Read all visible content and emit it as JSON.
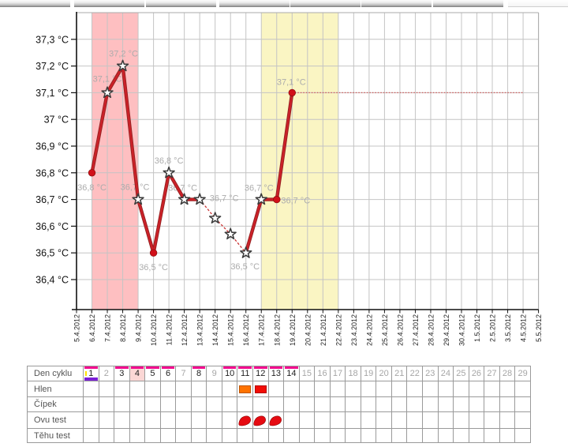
{
  "top_strip": {
    "segment_count": 8
  },
  "chart_data": {
    "type": "line",
    "title": "",
    "xlabel": "",
    "ylabel": "",
    "grid": true,
    "ylim": [
      36.29,
      37.4
    ],
    "x_dates": [
      "5.4.2012",
      "6.4.2012",
      "7.4.2012",
      "8.4.2012",
      "9.4.2012",
      "10.4.2012",
      "11.4.2012",
      "12.4.2012",
      "13.4.2012",
      "14.4.2012",
      "15.4.2012",
      "16.4.2012",
      "17.4.2012",
      "18.4.2012",
      "19.4.2012",
      "20.4.2012",
      "21.4.2012",
      "22.4.2012",
      "23.4.2012",
      "24.4.2012",
      "25.4.2012",
      "26.4.2012",
      "27.4.2012",
      "28.4.2012",
      "29.4.2012",
      "30.4.2012",
      "1.5.2012",
      "2.5.2012",
      "3.5.2012",
      "4.5.2012",
      "5.5.2012"
    ],
    "y_ticks": [
      {
        "temp": 37.3,
        "label": "37,3 °C"
      },
      {
        "temp": 37.2,
        "label": "37,2 °C"
      },
      {
        "temp": 37.1,
        "label": "37,1 °C"
      },
      {
        "temp": 37.0,
        "label": "37 °C"
      },
      {
        "temp": 36.9,
        "label": "36,9 °C"
      },
      {
        "temp": 36.8,
        "label": "36,8 °C"
      },
      {
        "temp": 36.7,
        "label": "36,7 °C"
      },
      {
        "temp": 36.6,
        "label": "36,6 °C"
      },
      {
        "temp": 36.5,
        "label": "36,5 °C"
      },
      {
        "temp": 36.4,
        "label": "36,4 °C"
      }
    ],
    "bands": [
      {
        "name": "menstruation",
        "from": "6.4.2012",
        "to": "9.4.2012",
        "color": "#febfc1"
      },
      {
        "name": "fertile-window",
        "from": "17.4.2012",
        "to": "22.4.2012",
        "color": "#faf5c3"
      }
    ],
    "series": [
      {
        "name": "basal-temperature",
        "color": "#cb2128",
        "points": [
          {
            "date": "6.4.2012",
            "temp": 36.8,
            "marker": "dot",
            "link": null,
            "label": "36,8 °C",
            "label_dx": 0,
            "label_dy": 18
          },
          {
            "date": "7.4.2012",
            "temp": 37.1,
            "marker": "star",
            "link": "solid",
            "label": "37,1 °C",
            "label_dx": 0,
            "label_dy": -18
          },
          {
            "date": "8.4.2012",
            "temp": 37.2,
            "marker": "star",
            "link": "solid",
            "label": "37,2 °C",
            "label_dx": 1,
            "label_dy": -16
          },
          {
            "date": "9.4.2012",
            "temp": 36.7,
            "marker": "star",
            "link": "solid",
            "label": "36,7 °C",
            "label_dx": -4,
            "label_dy": -16
          },
          {
            "date": "10.4.2012",
            "temp": 36.5,
            "marker": "dot",
            "link": "solid",
            "label": "36,5 °C",
            "label_dx": 0,
            "label_dy": 18
          },
          {
            "date": "11.4.2012",
            "temp": 36.8,
            "marker": "star",
            "link": "solid",
            "label": "36,8 °C",
            "label_dx": 0,
            "label_dy": -16
          },
          {
            "date": "12.4.2012",
            "temp": 36.7,
            "marker": "star",
            "link": "solid",
            "label": "36,7 °C",
            "label_dx": -2,
            "label_dy": -15
          },
          {
            "date": "13.4.2012",
            "temp": 36.7,
            "marker": "star",
            "link": "solid",
            "label": "36,7 °C",
            "label_dx": 31,
            "label_dy": -2
          },
          {
            "date": "14.4.2012",
            "temp": 36.63,
            "marker": "star",
            "link": "dashed",
            "label": null,
            "label_dx": 0,
            "label_dy": 0
          },
          {
            "date": "15.4.2012",
            "temp": 36.57,
            "marker": "star",
            "link": "dashed",
            "label": null,
            "label_dx": 0,
            "label_dy": 0
          },
          {
            "date": "16.4.2012",
            "temp": 36.5,
            "marker": "star",
            "link": "dashed",
            "label": "36,5 °C",
            "label_dx": -1,
            "label_dy": 17
          },
          {
            "date": "17.4.2012",
            "temp": 36.7,
            "marker": "star",
            "link": "solid",
            "label": "36,7 °C",
            "label_dx": -3,
            "label_dy": -15
          },
          {
            "date": "18.4.2012",
            "temp": 36.7,
            "marker": "dot",
            "link": "solid",
            "label": "36,7 °C",
            "label_dx": 24,
            "label_dy": 1
          },
          {
            "date": "19.4.2012",
            "temp": 37.1,
            "marker": "dot",
            "link": "solid",
            "label": "37,1 °C",
            "label_dx": -1,
            "label_dy": -14
          }
        ]
      }
    ],
    "projection": {
      "temp": 37.1,
      "from": "19.4.2012",
      "to": "4.5.2012",
      "style": "dotted",
      "color": "#cf5f5f"
    }
  },
  "cycle_table": {
    "day_numbers": [
      1,
      2,
      3,
      4,
      5,
      6,
      7,
      8,
      9,
      10,
      11,
      12,
      13,
      14,
      15,
      16,
      17,
      18,
      19,
      20,
      21,
      22,
      23,
      24,
      25,
      26,
      27,
      28,
      29
    ],
    "marked_days": [
      1,
      3,
      4,
      5,
      6,
      8,
      10,
      11,
      12,
      13,
      14
    ],
    "highlighted_day": 4,
    "period_bar_days": [
      1
    ],
    "note_tick_day": 1,
    "colors": {
      "mark_bar": "#f20a8e",
      "period_bar": "#7b1fd6",
      "highlight_bg": "#fbd7d5",
      "note_tick": "#ffe400"
    },
    "rows": [
      {
        "label": "Den cyklu",
        "type": "days",
        "entries": []
      },
      {
        "label": "Hlen",
        "type": "entries",
        "entries": [
          {
            "day": 11,
            "kind": "rect",
            "color": "#ff7301"
          },
          {
            "day": 12,
            "kind": "rect",
            "color": "#f20d05"
          }
        ]
      },
      {
        "label": "Čípek",
        "type": "entries",
        "entries": []
      },
      {
        "label": "Ovu test",
        "type": "entries",
        "entries": [
          {
            "day": 11,
            "kind": "drop",
            "color": "#e60b12"
          },
          {
            "day": 12,
            "kind": "drop",
            "color": "#e60b12"
          },
          {
            "day": 13,
            "kind": "drop",
            "color": "#e60b12"
          }
        ]
      },
      {
        "label": "Těhu test",
        "type": "entries",
        "entries": []
      }
    ]
  }
}
